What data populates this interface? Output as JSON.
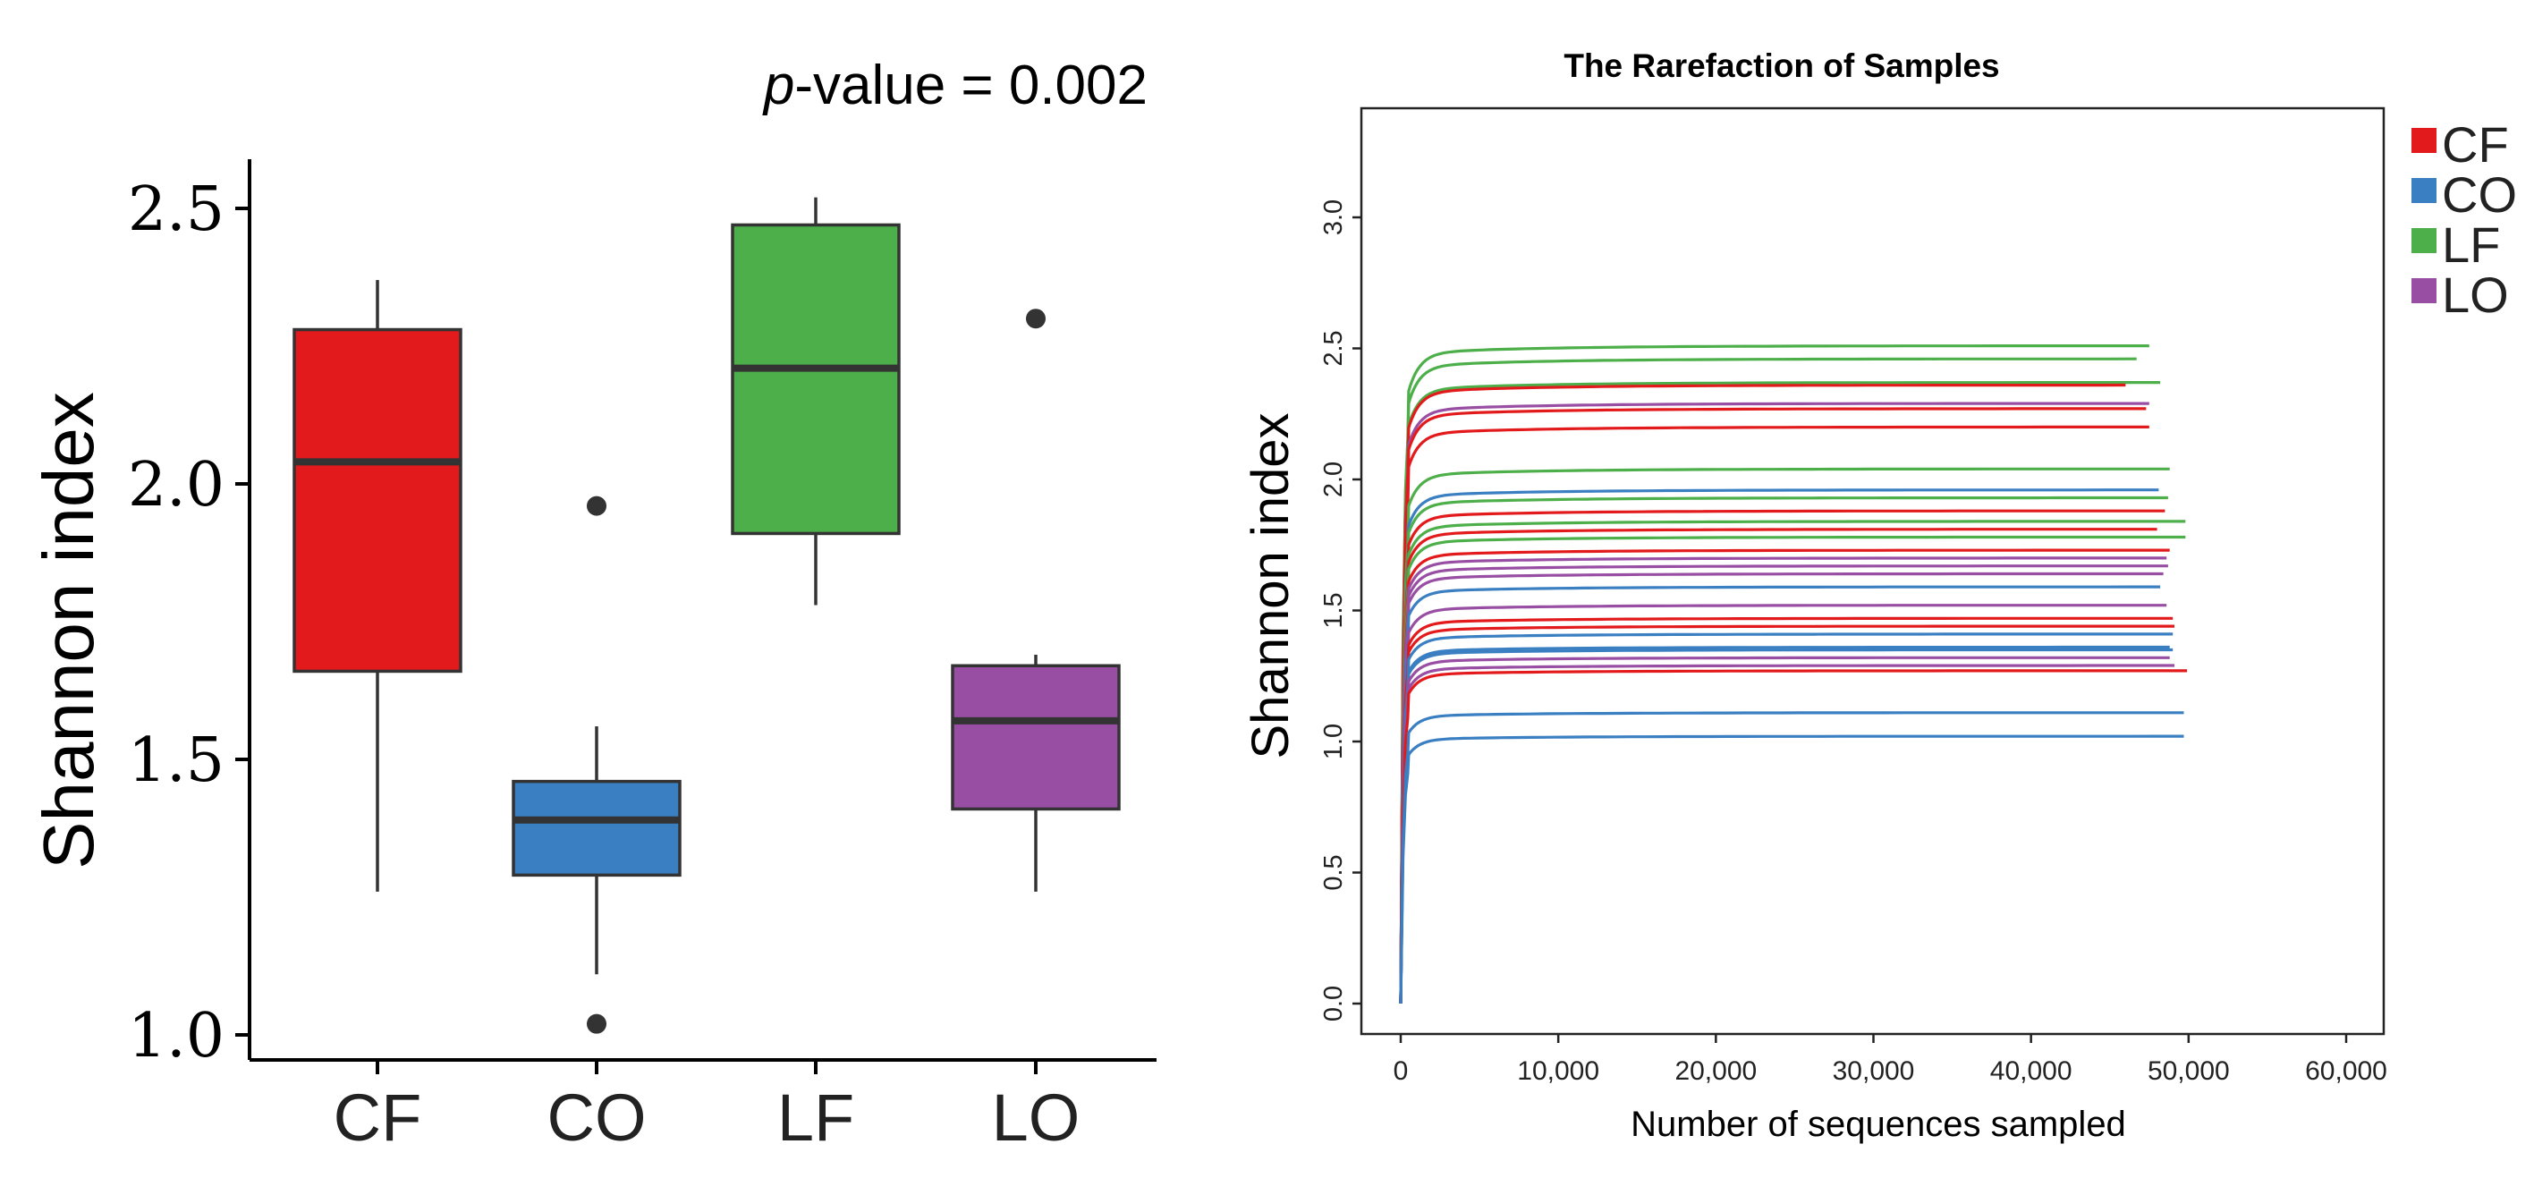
{
  "chart_data": [
    {
      "type": "box",
      "title": "",
      "annotation_prefix": "p",
      "annotation_suffix": "-value = 0.002",
      "ylabel": "Shannon index",
      "xlabel": "",
      "ylim": [
        0.95,
        2.6
      ],
      "yticks": [
        "1.0",
        "1.5",
        "2.0",
        "2.5"
      ],
      "ytick_values": [
        1.0,
        1.5,
        2.0,
        2.5
      ],
      "categories": [
        "CF",
        "CO",
        "LF",
        "LO"
      ],
      "boxes": [
        {
          "name": "CF",
          "color": "#e31a1c",
          "whisker_low": 1.26,
          "q1": 1.66,
          "median": 2.04,
          "q3": 2.28,
          "whisker_high": 2.37,
          "outliers": []
        },
        {
          "name": "CO",
          "color": "#3a7fc1",
          "whisker_low": 1.11,
          "q1": 1.29,
          "median": 1.39,
          "q3": 1.46,
          "whisker_high": 1.56,
          "outliers": [
            1.96,
            1.02
          ]
        },
        {
          "name": "LF",
          "color": "#4daf4a",
          "whisker_low": 1.78,
          "q1": 1.91,
          "median": 2.21,
          "q3": 2.47,
          "whisker_high": 2.52,
          "outliers": []
        },
        {
          "name": "LO",
          "color": "#984ea3",
          "whisker_low": 1.26,
          "q1": 1.41,
          "median": 1.57,
          "q3": 1.67,
          "whisker_high": 1.69,
          "outliers": [
            2.3
          ]
        }
      ]
    },
    {
      "type": "line",
      "title": "The Rarefaction of Samples",
      "xlabel": "Number of sequences sampled",
      "ylabel": "Shannon index",
      "xlim": [
        -3500,
        62500
      ],
      "ylim": [
        -0.05,
        3.4
      ],
      "xticks": [
        "0",
        "10,000",
        "20,000",
        "30,000",
        "40,000",
        "50,000",
        "60,000"
      ],
      "xtick_values": [
        0,
        10000,
        20000,
        30000,
        40000,
        50000,
        60000
      ],
      "yticks": [
        "0.0",
        "0.5",
        "1.0",
        "1.5",
        "2.0",
        "2.5",
        "3.0"
      ],
      "ytick_values": [
        0,
        0.5,
        1.0,
        1.5,
        2.0,
        2.5,
        3.0
      ],
      "legend": [
        {
          "label": "CF",
          "color": "#e31a1c"
        },
        {
          "label": "CO",
          "color": "#3a7fc1"
        },
        {
          "label": "LF",
          "color": "#4daf4a"
        },
        {
          "label": "LO",
          "color": "#984ea3"
        }
      ],
      "series": [
        {
          "name": "LF",
          "plateau": 2.51,
          "x_end": 47500
        },
        {
          "name": "LF",
          "plateau": 2.46,
          "x_end": 46700
        },
        {
          "name": "LF",
          "plateau": 2.37,
          "x_end": 48200
        },
        {
          "name": "CF",
          "plateau": 2.36,
          "x_end": 46000
        },
        {
          "name": "LO",
          "plateau": 2.29,
          "x_end": 47500
        },
        {
          "name": "CF",
          "plateau": 2.27,
          "x_end": 47300
        },
        {
          "name": "CF",
          "plateau": 2.2,
          "x_end": 47500
        },
        {
          "name": "LF",
          "plateau": 2.04,
          "x_end": 48800
        },
        {
          "name": "CO",
          "plateau": 1.96,
          "x_end": 48100
        },
        {
          "name": "LF",
          "plateau": 1.93,
          "x_end": 48700
        },
        {
          "name": "CF",
          "plateau": 1.88,
          "x_end": 48500
        },
        {
          "name": "LF",
          "plateau": 1.84,
          "x_end": 49800
        },
        {
          "name": "CF",
          "plateau": 1.81,
          "x_end": 48000
        },
        {
          "name": "LF",
          "plateau": 1.78,
          "x_end": 49800
        },
        {
          "name": "CF",
          "plateau": 1.73,
          "x_end": 48800
        },
        {
          "name": "LO",
          "plateau": 1.7,
          "x_end": 48600
        },
        {
          "name": "LO",
          "plateau": 1.67,
          "x_end": 48700
        },
        {
          "name": "LO",
          "plateau": 1.64,
          "x_end": 48400
        },
        {
          "name": "CO",
          "plateau": 1.59,
          "x_end": 48200
        },
        {
          "name": "LO",
          "plateau": 1.52,
          "x_end": 48600
        },
        {
          "name": "CF",
          "plateau": 1.47,
          "x_end": 49000
        },
        {
          "name": "CF",
          "plateau": 1.44,
          "x_end": 49100
        },
        {
          "name": "CO",
          "plateau": 1.41,
          "x_end": 49000
        },
        {
          "name": "CO",
          "plateau": 1.36,
          "x_end": 48800
        },
        {
          "name": "CO",
          "plateau": 1.35,
          "x_end": 49000
        },
        {
          "name": "LO",
          "plateau": 1.32,
          "x_end": 48800
        },
        {
          "name": "LO",
          "plateau": 1.29,
          "x_end": 49100
        },
        {
          "name": "CF",
          "plateau": 1.27,
          "x_end": 49900
        },
        {
          "name": "CO",
          "plateau": 1.11,
          "x_end": 49700
        },
        {
          "name": "CO",
          "plateau": 1.02,
          "x_end": 49700
        }
      ]
    }
  ]
}
